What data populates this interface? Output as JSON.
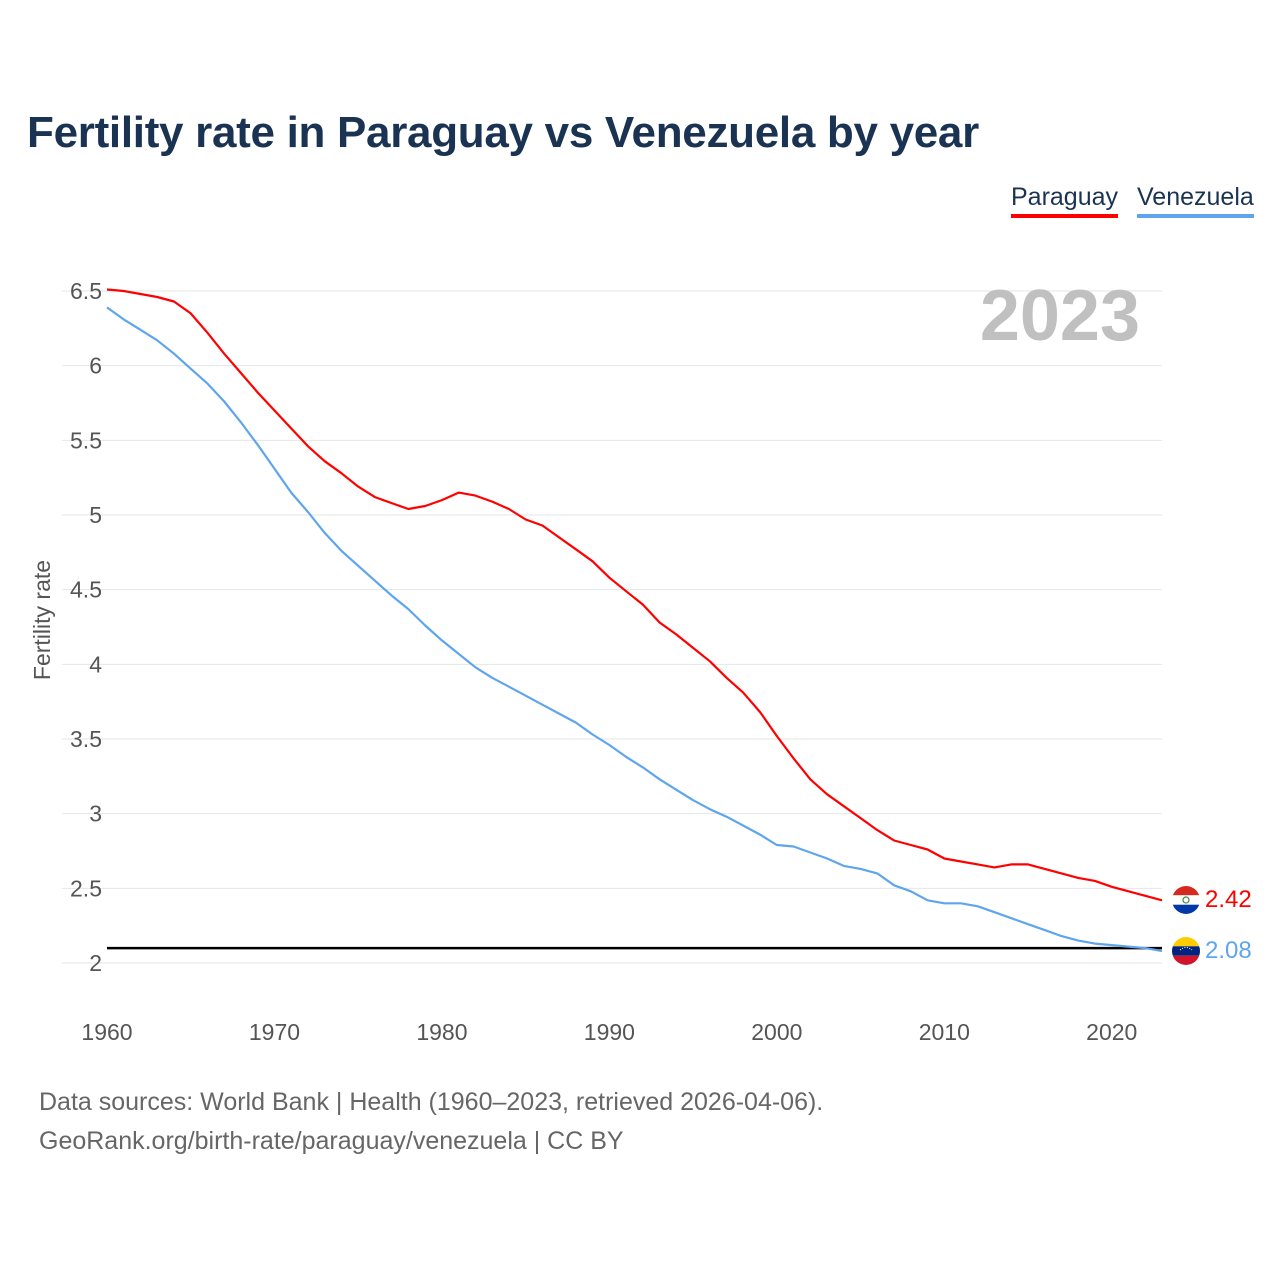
{
  "chart_data": {
    "type": "line",
    "title": "Fertility rate in Paraguay vs Venezuela by year",
    "xlabel": "",
    "ylabel": "Fertility rate",
    "xlim": [
      1960,
      2023
    ],
    "ylim": [
      2,
      6.5
    ],
    "x_ticks": [
      "1960",
      "1970",
      "1980",
      "1990",
      "2000",
      "2010",
      "2020"
    ],
    "y_ticks": [
      "2",
      "2.5",
      "3",
      "3.5",
      "4",
      "4.5",
      "5",
      "5.5",
      "6",
      "6.5"
    ],
    "grid": true,
    "legend_position": "top-right",
    "year_label": "2023",
    "reference_line": 2.1,
    "x": [
      1960,
      1961,
      1962,
      1963,
      1964,
      1965,
      1966,
      1967,
      1968,
      1969,
      1970,
      1971,
      1972,
      1973,
      1974,
      1975,
      1976,
      1977,
      1978,
      1979,
      1980,
      1981,
      1982,
      1983,
      1984,
      1985,
      1986,
      1987,
      1988,
      1989,
      1990,
      1991,
      1992,
      1993,
      1994,
      1995,
      1996,
      1997,
      1998,
      1999,
      2000,
      2001,
      2002,
      2003,
      2004,
      2005,
      2006,
      2007,
      2008,
      2009,
      2010,
      2011,
      2012,
      2013,
      2014,
      2015,
      2016,
      2017,
      2018,
      2019,
      2020,
      2021,
      2022,
      2023
    ],
    "series": [
      {
        "name": "Paraguay",
        "color": "#ff0000",
        "end_label": "2.42",
        "values": [
          6.51,
          6.5,
          6.48,
          6.46,
          6.43,
          6.35,
          6.22,
          6.08,
          5.95,
          5.82,
          5.7,
          5.58,
          5.46,
          5.36,
          5.28,
          5.19,
          5.12,
          5.08,
          5.04,
          5.06,
          5.1,
          5.15,
          5.13,
          5.09,
          5.04,
          4.97,
          4.93,
          4.85,
          4.77,
          4.69,
          4.58,
          4.49,
          4.4,
          4.28,
          4.2,
          4.11,
          4.02,
          3.91,
          3.81,
          3.68,
          3.52,
          3.37,
          3.23,
          3.13,
          3.05,
          2.97,
          2.89,
          2.82,
          2.79,
          2.76,
          2.7,
          2.68,
          2.66,
          2.64,
          2.66,
          2.66,
          2.63,
          2.6,
          2.57,
          2.55,
          2.51,
          2.48,
          2.45,
          2.42
        ]
      },
      {
        "name": "Venezuela",
        "color": "#5ea5ee",
        "end_label": "2.08",
        "values": [
          6.39,
          6.31,
          6.24,
          6.17,
          6.08,
          5.98,
          5.88,
          5.76,
          5.62,
          5.47,
          5.31,
          5.15,
          5.02,
          4.88,
          4.76,
          4.66,
          4.56,
          4.46,
          4.37,
          4.26,
          4.16,
          4.07,
          3.98,
          3.91,
          3.85,
          3.79,
          3.73,
          3.67,
          3.61,
          3.53,
          3.46,
          3.38,
          3.31,
          3.23,
          3.16,
          3.09,
          3.03,
          2.98,
          2.92,
          2.86,
          2.79,
          2.78,
          2.74,
          2.7,
          2.65,
          2.63,
          2.6,
          2.52,
          2.48,
          2.42,
          2.4,
          2.4,
          2.38,
          2.34,
          2.3,
          2.26,
          2.22,
          2.18,
          2.15,
          2.13,
          2.12,
          2.11,
          2.1,
          2.08
        ]
      }
    ]
  },
  "footer": {
    "line1": "Data sources: World Bank | Health (1960–2023, retrieved 2026-04-06).",
    "line2": "GeoRank.org/birth-rate/paraguay/venezuela | CC BY"
  }
}
